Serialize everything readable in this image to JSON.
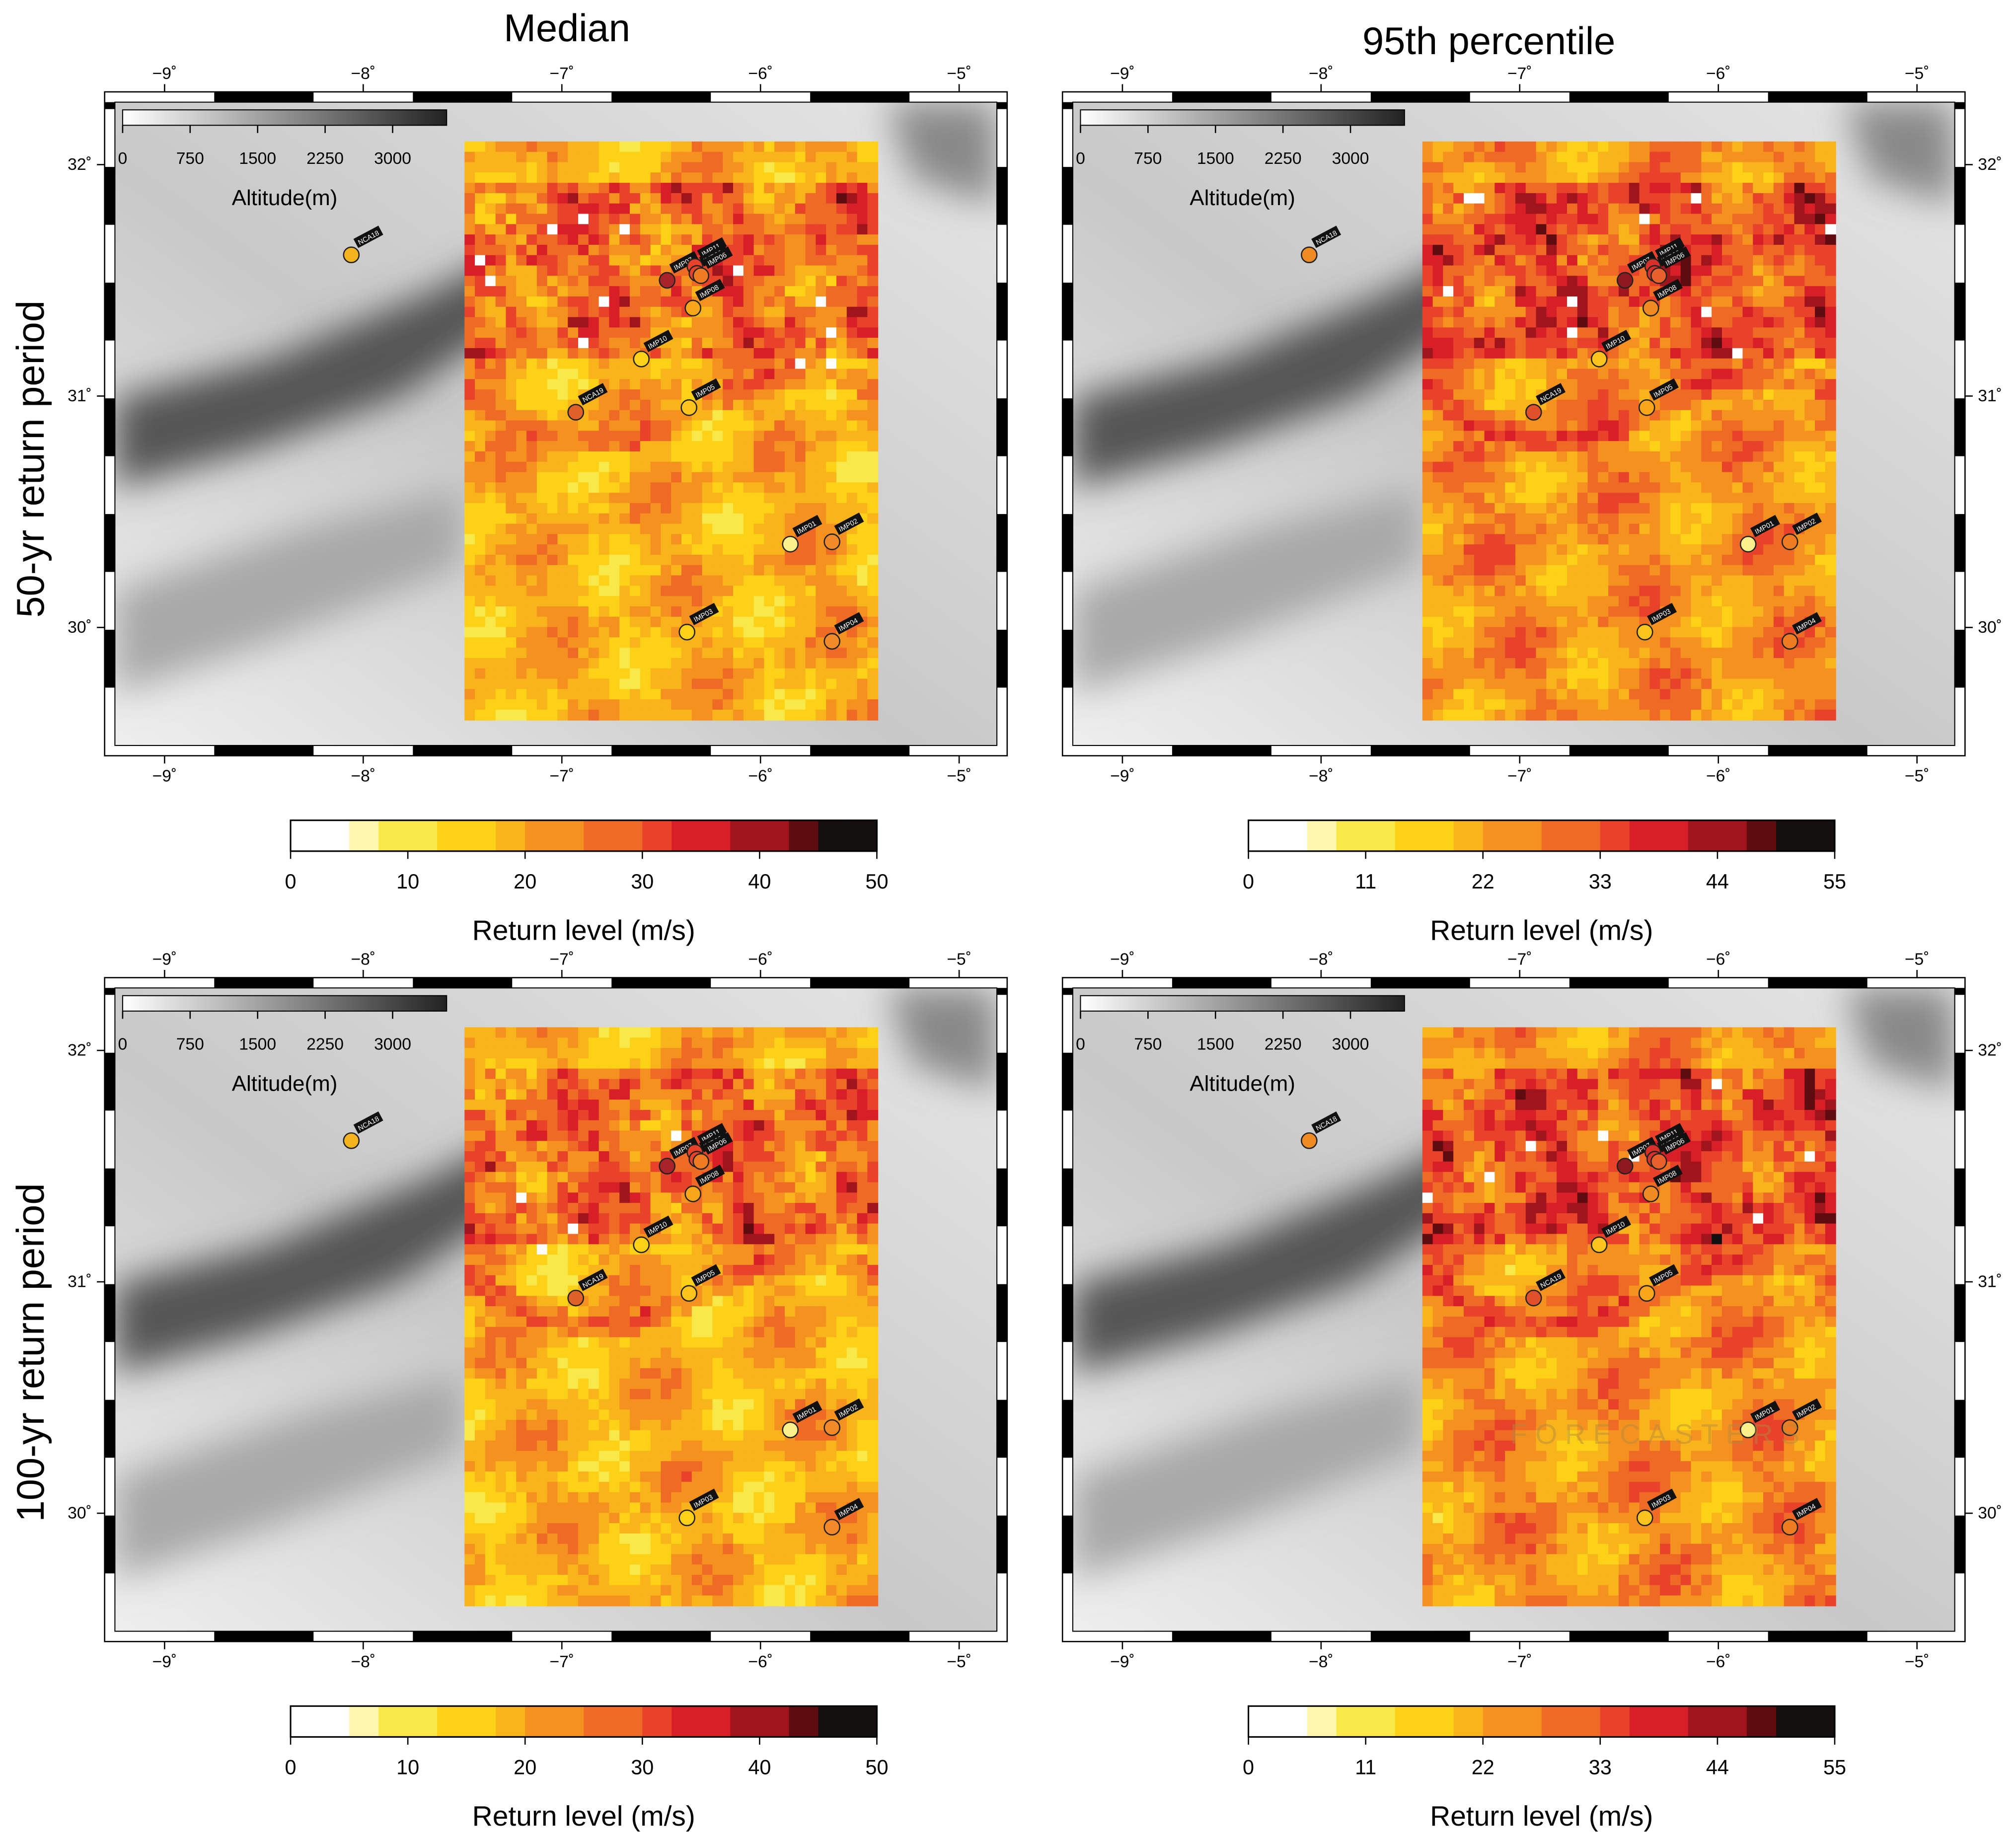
{
  "columns": [
    "Median",
    "95th percentile"
  ],
  "rows": [
    "50-yr return period",
    "100-yr return period"
  ],
  "map": {
    "xlim": [
      -9.25,
      -4.81
    ],
    "ylim": [
      29.49,
      32.27
    ],
    "xticks": [
      {
        "value": -9,
        "label": "−9˚"
      },
      {
        "value": -8,
        "label": "−8˚"
      },
      {
        "value": -7,
        "label": "−7˚"
      },
      {
        "value": -6,
        "label": "−6˚"
      },
      {
        "value": -5,
        "label": "−5˚"
      }
    ],
    "yticks": [
      {
        "value": 32,
        "label": "32˚"
      },
      {
        "value": 31,
        "label": "31˚"
      },
      {
        "value": 30,
        "label": "30˚"
      }
    ]
  },
  "model_domain": {
    "lon": [
      -7.49,
      -5.41
    ],
    "lat": [
      29.6,
      32.1
    ]
  },
  "altitude_legend": {
    "label": "Altitude(m)",
    "range": [
      0,
      3600
    ],
    "ticks": [
      0,
      750,
      1500,
      2250,
      3000
    ]
  },
  "colorbars": [
    {
      "label": "Return level (m/s)",
      "range": [
        0,
        50
      ],
      "ticks": [
        0,
        10,
        20,
        30,
        40,
        50
      ]
    },
    {
      "label": "Return level (m/s)",
      "range": [
        0,
        55
      ],
      "ticks": [
        0,
        11,
        22,
        33,
        44,
        55
      ]
    }
  ],
  "stations": [
    {
      "name": "NCA18",
      "lon": -8.06,
      "lat": 31.61,
      "colors": [
        "#f5b41e",
        "#f08a22"
      ]
    },
    {
      "name": "IMP07",
      "lon": -6.47,
      "lat": 31.5,
      "colors": [
        "#a8232a",
        "#8e1a20"
      ]
    },
    {
      "name": "IMP11",
      "lon": -6.33,
      "lat": 31.56,
      "colors": [
        "#e8432a",
        "#d8302a"
      ]
    },
    {
      "name": "IMP09",
      "lon": -6.32,
      "lat": 31.53,
      "colors": [
        "#e8432a",
        "#d8302a"
      ]
    },
    {
      "name": "IMP06",
      "lon": -6.3,
      "lat": 31.52,
      "colors": [
        "#f07c22",
        "#e8602a"
      ]
    },
    {
      "name": "IMP08",
      "lon": -6.34,
      "lat": 31.38,
      "colors": [
        "#f9a61b",
        "#f08a22"
      ]
    },
    {
      "name": "IMP10",
      "lon": -6.6,
      "lat": 31.16,
      "colors": [
        "#fcd116",
        "#fcc41c"
      ]
    },
    {
      "name": "NCA19",
      "lon": -6.93,
      "lat": 30.93,
      "colors": [
        "#e0602a",
        "#e0502a"
      ]
    },
    {
      "name": "IMP05",
      "lon": -6.36,
      "lat": 30.95,
      "colors": [
        "#fcc41c",
        "#f9a61b"
      ]
    },
    {
      "name": "IMP01",
      "lon": -5.85,
      "lat": 30.36,
      "colors": [
        "#fbf08a",
        "#fbf08a"
      ]
    },
    {
      "name": "IMP02",
      "lon": -5.64,
      "lat": 30.37,
      "colors": [
        "#f28a2a",
        "#f07c22"
      ]
    },
    {
      "name": "IMP03",
      "lon": -6.37,
      "lat": 29.98,
      "colors": [
        "#fcd116",
        "#fcc41c"
      ]
    },
    {
      "name": "IMP04",
      "lon": -5.64,
      "lat": 29.94,
      "colors": [
        "#f28a2a",
        "#f07c22"
      ]
    }
  ],
  "watermark": "FORECASTERS"
}
